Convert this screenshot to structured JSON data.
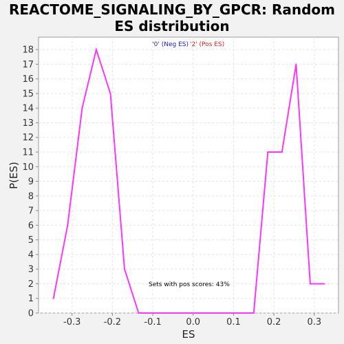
{
  "chart_data": {
    "type": "line",
    "title_lines": [
      "REACTOME_SIGNALING_BY_GPCR: Random",
      "ES distribution"
    ],
    "xlabel": "ES",
    "ylabel": "P(ES)",
    "xlim": [
      -0.383,
      0.36
    ],
    "ylim": [
      0,
      18.85
    ],
    "xticks": [
      -0.3,
      -0.2,
      -0.1,
      0.0,
      0.1,
      0.2,
      0.3
    ],
    "xtick_labels": [
      "-0.3",
      "-0.2",
      "-0.1",
      "0.0",
      "0.1",
      "0.2",
      "0.3"
    ],
    "yticks": [
      0,
      1,
      2,
      3,
      4,
      5,
      6,
      7,
      8,
      9,
      10,
      11,
      12,
      13,
      14,
      15,
      16,
      17,
      18
    ],
    "ytick_labels": [
      "0",
      "1",
      "2",
      "3",
      "4",
      "5",
      "6",
      "7",
      "8",
      "9",
      "10",
      "11",
      "12",
      "13",
      "14",
      "15",
      "16",
      "17",
      "18"
    ],
    "grid": true,
    "legend": [
      {
        "label": "'0' (Neg ES)",
        "color": "#1a1acc"
      },
      {
        "label": "'2' (Pos ES)",
        "color": "#e02020"
      }
    ],
    "annotation": "Sets with pos scores: 43%",
    "series": [
      {
        "name": "ES distribution",
        "color": "#ff33ff",
        "x": [
          -0.346,
          -0.311,
          -0.275,
          -0.24,
          -0.205,
          -0.17,
          -0.135,
          -0.1,
          -0.065,
          -0.03,
          0.005,
          0.04,
          0.075,
          0.11,
          0.15,
          0.185,
          0.22,
          0.255,
          0.29,
          0.325
        ],
        "y": [
          1,
          6,
          14,
          18,
          15,
          3,
          0,
          0,
          0,
          0,
          0,
          0,
          0,
          0,
          0,
          11,
          11,
          17,
          2,
          2
        ]
      }
    ]
  }
}
